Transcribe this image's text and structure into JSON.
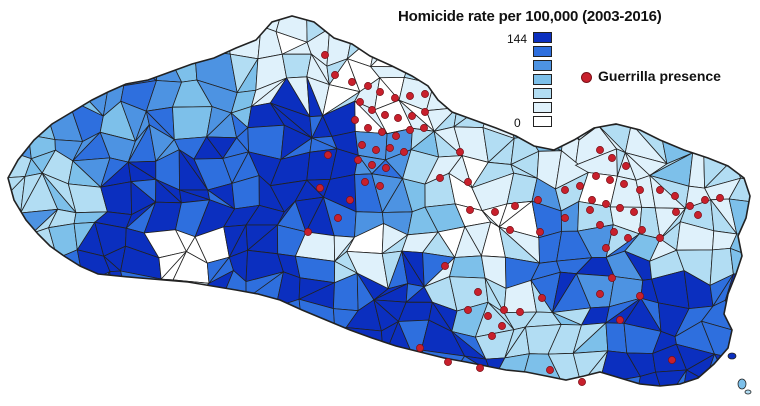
{
  "title": "Homicide rate per 100,000 (2003-2016)",
  "legend": {
    "max_label": "144",
    "min_label": "0",
    "classes": [
      "#0b2fbf",
      "#2e6fde",
      "#4d93e2",
      "#7dc0ea",
      "#b2ddf3",
      "#dff1fb",
      "#ffffff"
    ],
    "guerrilla_label": "Guerrilla presence"
  },
  "colors": {
    "border": "#222222",
    "dot_fill": "#c8202c",
    "dot_stroke": "#7a1018"
  }
}
